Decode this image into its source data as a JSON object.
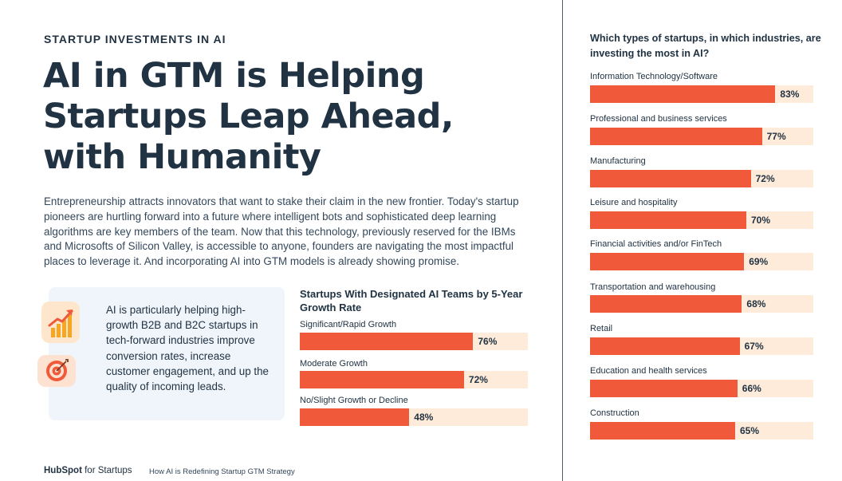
{
  "eyebrow": "STARTUP INVESTMENTS IN AI",
  "headline": "AI in GTM is Helping Startups Leap Ahead, with Humanity",
  "body": "Entrepreneurship attracts innovators that want to stake their claim in the new frontier. Today's startup pioneers are hurtling forward into a future where intelligent bots and sophisticated deep learning algorithms are key members of the team. Now that this technology, previously reserved for the IBMs and Microsofts of Silicon Valley, is accessible to anyone, founders are navigating the most impactful places to leverage it. And incorporating AI into GTM models is already showing promise.",
  "callout": {
    "text": "AI is particularly helping high-growth B2B and B2C startups in tech-forward industries improve conversion rates, increase customer engagement, and up the quality of incoming leads.",
    "icons": [
      "growth-chart-icon",
      "target-icon"
    ]
  },
  "colors": {
    "bar": "#f0593a",
    "track": "#feebd9",
    "text": "#213343"
  },
  "chart_data": [
    {
      "type": "bar",
      "orientation": "horizontal",
      "title": "Startups With Designated AI Teams by 5-Year Growth Rate",
      "xlim": [
        0,
        100
      ],
      "unit": "%",
      "categories": [
        "Significant/Rapid Growth",
        "Moderate Growth",
        "No/Slight Growth or Decline"
      ],
      "values": [
        76,
        72,
        48
      ],
      "value_labels": [
        "76%",
        "72%",
        "48%"
      ]
    },
    {
      "type": "bar",
      "orientation": "horizontal",
      "title": "Which types of startups, in which industries, are investing the most in AI?",
      "xlim": [
        0,
        100
      ],
      "unit": "%",
      "categories": [
        "Information Technology/Software",
        "Professional and business services",
        "Manufacturing",
        "Leisure and hospitality",
        "Financial activities and/or FinTech",
        "Transportation and warehousing",
        "Retail",
        "Education and health services",
        "Construction"
      ],
      "values": [
        83,
        77,
        72,
        70,
        69,
        68,
        67,
        66,
        65
      ],
      "value_labels": [
        "83%",
        "77%",
        "72%",
        "70%",
        "69%",
        "68%",
        "67%",
        "66%",
        "65%"
      ]
    }
  ],
  "footer": {
    "logo_brand": "HubSpot",
    "logo_suffix": "for Startups",
    "caption": "How AI is Redefining Startup GTM Strategy"
  }
}
